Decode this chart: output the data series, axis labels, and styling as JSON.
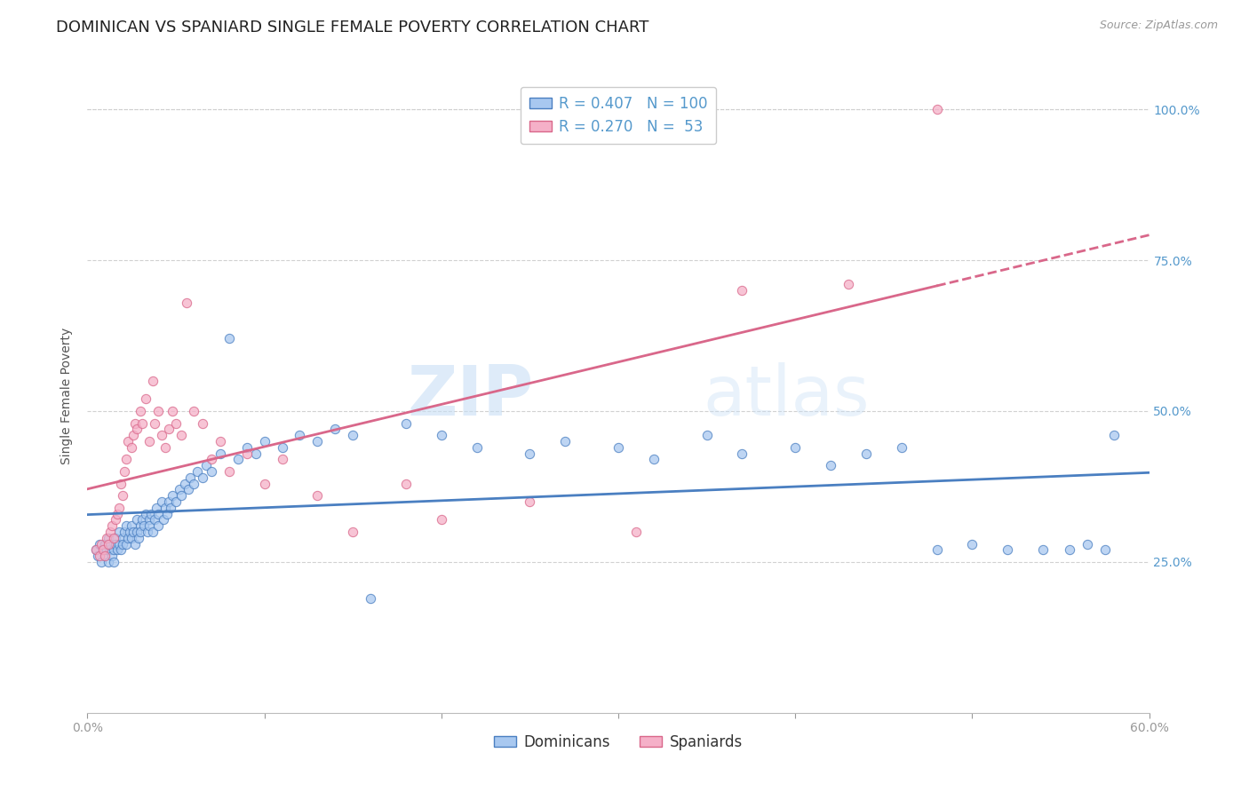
{
  "title": "DOMINICAN VS SPANIARD SINGLE FEMALE POVERTY CORRELATION CHART",
  "source": "Source: ZipAtlas.com",
  "ylabel": "Single Female Poverty",
  "legend_label1": "Dominicans",
  "legend_label2": "Spaniards",
  "R1": 0.407,
  "N1": 100,
  "R2": 0.27,
  "N2": 53,
  "color1": "#a8c8f0",
  "color2": "#f5b0c8",
  "line_color1": "#4a7fc1",
  "line_color2": "#d9678a",
  "watermark_zip": "ZIP",
  "watermark_atlas": "atlas",
  "background_color": "#ffffff",
  "dot_size": 55,
  "dot_alpha": 0.75,
  "dominicans_x": [
    0.005,
    0.006,
    0.007,
    0.008,
    0.009,
    0.01,
    0.01,
    0.011,
    0.012,
    0.012,
    0.013,
    0.013,
    0.014,
    0.015,
    0.015,
    0.016,
    0.016,
    0.017,
    0.018,
    0.018,
    0.019,
    0.02,
    0.02,
    0.021,
    0.022,
    0.022,
    0.023,
    0.024,
    0.025,
    0.025,
    0.026,
    0.027,
    0.028,
    0.028,
    0.029,
    0.03,
    0.03,
    0.031,
    0.032,
    0.033,
    0.034,
    0.035,
    0.035,
    0.036,
    0.037,
    0.038,
    0.039,
    0.04,
    0.04,
    0.042,
    0.043,
    0.044,
    0.045,
    0.046,
    0.047,
    0.048,
    0.05,
    0.052,
    0.053,
    0.055,
    0.057,
    0.058,
    0.06,
    0.062,
    0.065,
    0.067,
    0.07,
    0.075,
    0.08,
    0.085,
    0.09,
    0.095,
    0.1,
    0.11,
    0.12,
    0.13,
    0.14,
    0.15,
    0.16,
    0.18,
    0.2,
    0.22,
    0.25,
    0.27,
    0.3,
    0.32,
    0.35,
    0.37,
    0.4,
    0.42,
    0.44,
    0.46,
    0.48,
    0.5,
    0.52,
    0.54,
    0.555,
    0.565,
    0.575,
    0.58
  ],
  "dominicans_y": [
    0.27,
    0.26,
    0.28,
    0.25,
    0.27,
    0.26,
    0.28,
    0.27,
    0.25,
    0.29,
    0.27,
    0.28,
    0.26,
    0.27,
    0.25,
    0.29,
    0.28,
    0.27,
    0.3,
    0.28,
    0.27,
    0.29,
    0.28,
    0.3,
    0.28,
    0.31,
    0.29,
    0.3,
    0.29,
    0.31,
    0.3,
    0.28,
    0.32,
    0.3,
    0.29,
    0.31,
    0.3,
    0.32,
    0.31,
    0.33,
    0.3,
    0.32,
    0.31,
    0.33,
    0.3,
    0.32,
    0.34,
    0.33,
    0.31,
    0.35,
    0.32,
    0.34,
    0.33,
    0.35,
    0.34,
    0.36,
    0.35,
    0.37,
    0.36,
    0.38,
    0.37,
    0.39,
    0.38,
    0.4,
    0.39,
    0.41,
    0.4,
    0.43,
    0.62,
    0.42,
    0.44,
    0.43,
    0.45,
    0.44,
    0.46,
    0.45,
    0.47,
    0.46,
    0.19,
    0.48,
    0.46,
    0.44,
    0.43,
    0.45,
    0.44,
    0.42,
    0.46,
    0.43,
    0.44,
    0.41,
    0.43,
    0.44,
    0.27,
    0.28,
    0.27,
    0.27,
    0.27,
    0.28,
    0.27,
    0.46
  ],
  "spaniards_x": [
    0.005,
    0.007,
    0.008,
    0.009,
    0.01,
    0.011,
    0.012,
    0.013,
    0.014,
    0.015,
    0.016,
    0.017,
    0.018,
    0.019,
    0.02,
    0.021,
    0.022,
    0.023,
    0.025,
    0.026,
    0.027,
    0.028,
    0.03,
    0.031,
    0.033,
    0.035,
    0.037,
    0.038,
    0.04,
    0.042,
    0.044,
    0.046,
    0.048,
    0.05,
    0.053,
    0.056,
    0.06,
    0.065,
    0.07,
    0.075,
    0.08,
    0.09,
    0.1,
    0.11,
    0.13,
    0.15,
    0.18,
    0.2,
    0.25,
    0.31,
    0.37,
    0.43,
    0.48
  ],
  "spaniards_y": [
    0.27,
    0.26,
    0.28,
    0.27,
    0.26,
    0.29,
    0.28,
    0.3,
    0.31,
    0.29,
    0.32,
    0.33,
    0.34,
    0.38,
    0.36,
    0.4,
    0.42,
    0.45,
    0.44,
    0.46,
    0.48,
    0.47,
    0.5,
    0.48,
    0.52,
    0.45,
    0.55,
    0.48,
    0.5,
    0.46,
    0.44,
    0.47,
    0.5,
    0.48,
    0.46,
    0.68,
    0.5,
    0.48,
    0.42,
    0.45,
    0.4,
    0.43,
    0.38,
    0.42,
    0.36,
    0.3,
    0.38,
    0.32,
    0.35,
    0.3,
    0.7,
    0.71,
    1.0
  ],
  "xlim": [
    0.0,
    0.6
  ],
  "ylim": [
    0.0,
    1.05
  ],
  "ytick_vals": [
    0.25,
    0.5,
    0.75,
    1.0
  ],
  "ytick_labels": [
    "25.0%",
    "50.0%",
    "75.0%",
    "100.0%"
  ],
  "xtick_vals": [
    0.0,
    0.1,
    0.2,
    0.3,
    0.4,
    0.5,
    0.6
  ],
  "grid_color": "#cccccc",
  "title_fontsize": 13,
  "axis_label_fontsize": 10,
  "tick_fontsize": 10,
  "legend_fontsize": 12,
  "right_tick_color": "#5599cc"
}
